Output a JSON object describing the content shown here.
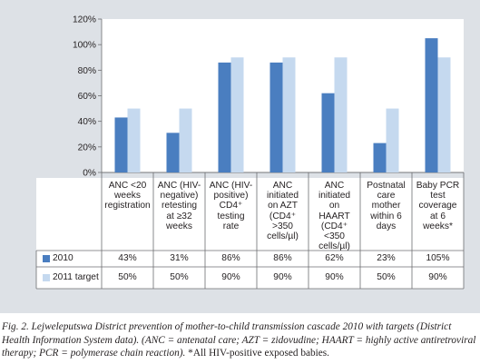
{
  "chart_data": {
    "type": "bar",
    "categories": [
      [
        "ANC <20",
        "weeks",
        "registration"
      ],
      [
        "ANC (HIV-",
        "negative)",
        "retesting",
        "at ≥32",
        "weeks"
      ],
      [
        "ANC (HIV-",
        "positive)",
        "CD4⁺",
        "testing",
        "rate"
      ],
      [
        "ANC",
        "initiated",
        "on AZT",
        "(CD4⁺",
        ">350",
        "cells/µl)"
      ],
      [
        "ANC",
        "initiated",
        "on",
        "HAART",
        "(CD4⁺",
        "<350",
        "cells/µl)"
      ],
      [
        "Postnatal",
        "care",
        "mother",
        "within 6",
        "days"
      ],
      [
        "Baby PCR",
        "test",
        "coverage",
        "at 6",
        "weeks*"
      ]
    ],
    "series": [
      {
        "name": "2010",
        "color": "#4a7ec0",
        "values": [
          43,
          31,
          86,
          86,
          62,
          23,
          105
        ],
        "labels": [
          "43%",
          "31%",
          "86%",
          "86%",
          "62%",
          "23%",
          "105%"
        ]
      },
      {
        "name": "2011 target",
        "color": "#c5d9ef",
        "values": [
          50,
          50,
          90,
          90,
          90,
          50,
          90
        ],
        "labels": [
          "50%",
          "50%",
          "90%",
          "90%",
          "90%",
          "50%",
          "90%"
        ]
      }
    ],
    "yticks": [
      "0%",
      "20%",
      "40%",
      "60%",
      "80%",
      "100%",
      "120%"
    ],
    "ylim": [
      0,
      120
    ],
    "grid": false,
    "legend": "table-bottom-left",
    "xlabel": "",
    "ylabel": ""
  },
  "caption": {
    "main": "Fig. 2. Lejweleputswa District prevention of mother-to-child transmission cascade 2010 with targets (District Health Information System data). (ANC = antenatal care; AZT = zidovudine; HAART = highly active antiretroviral therapy; PCR = polymerase chain reaction). ",
    "note": "*All HIV-positive exposed babies."
  }
}
